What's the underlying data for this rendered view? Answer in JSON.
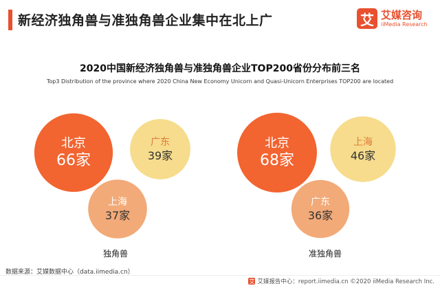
{
  "header": {
    "title": "新经济独角兽与准独角兽企业集中在北上广"
  },
  "logo": {
    "mark": "艾",
    "name_cn": "艾媒咨询",
    "name_en": "iiMedia Research"
  },
  "colors": {
    "accent": "#e8502f",
    "rank1": "#f26430",
    "rank2": "#f6dc8c",
    "rank3": "#f2aa78"
  },
  "chart_data": {
    "type": "bubble",
    "title": "2020中国新经济独角兽与准独角兽企业TOP200省份分布前三名",
    "subtitle": "Top3 Distribution of the province where 2020 China New Economy  Unicorn and Quasi-Unicorn Enterprises TOP200 are located",
    "unit": "家",
    "groups": [
      {
        "name": "独角兽",
        "items": [
          {
            "province": "北京",
            "value": 66,
            "rank": 1
          },
          {
            "province": "广东",
            "value": 39,
            "rank": 2
          },
          {
            "province": "上海",
            "value": 37,
            "rank": 3
          }
        ]
      },
      {
        "name": "准独角兽",
        "items": [
          {
            "province": "北京",
            "value": 68,
            "rank": 1
          },
          {
            "province": "上海",
            "value": 46,
            "rank": 2
          },
          {
            "province": "广东",
            "value": 36,
            "rank": 3
          }
        ]
      }
    ]
  },
  "source": "数据来源：艾媒数据中心（data.iimedia.cn）",
  "footer": {
    "mark": "艾",
    "text": "艾媒报告中心：report.iimedia.cn  ©2020  iiMedia Research  Inc."
  }
}
